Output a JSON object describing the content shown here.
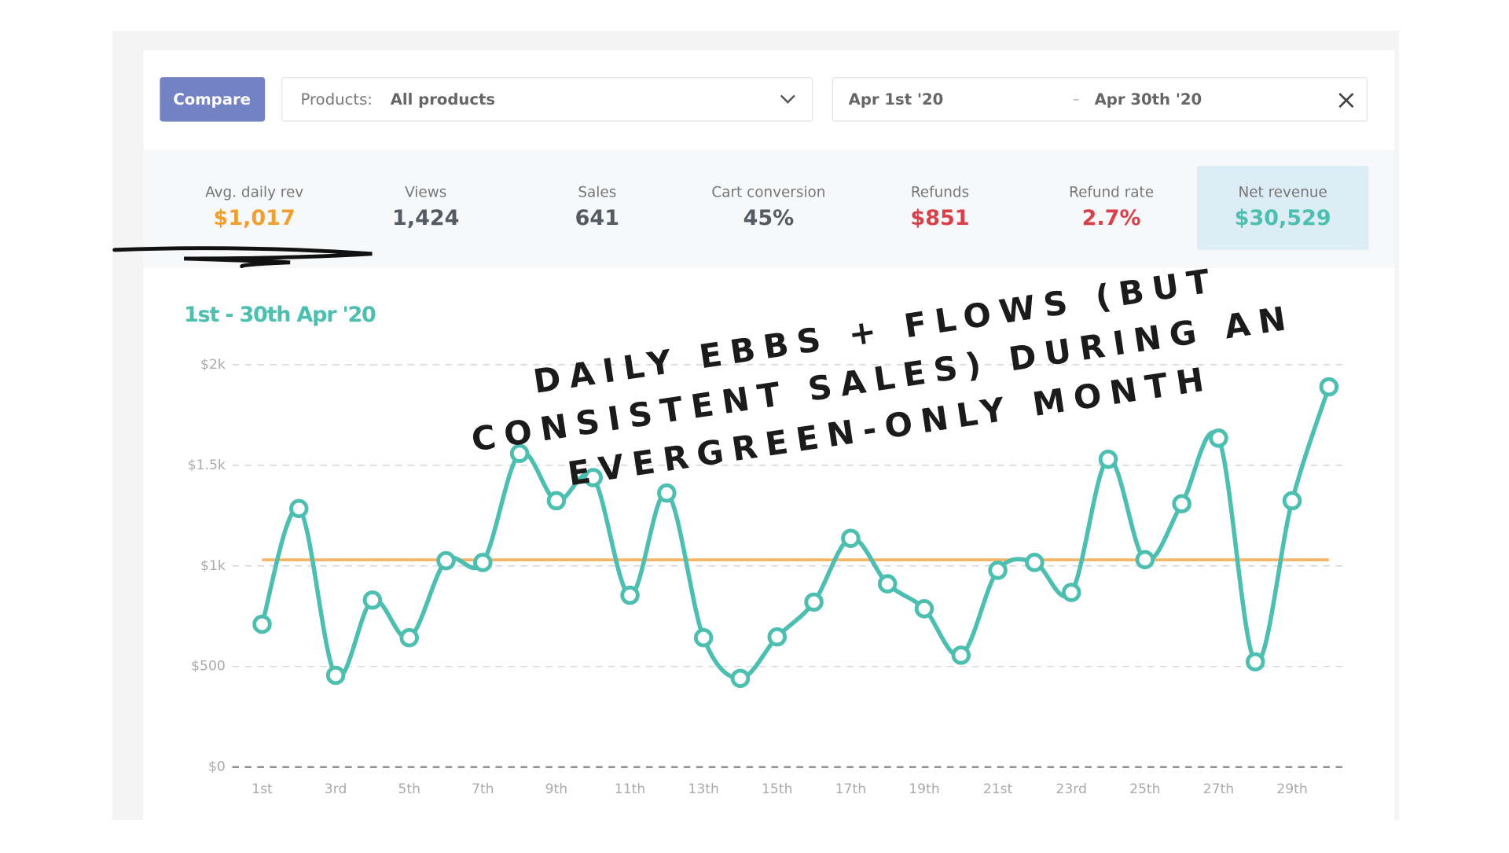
{
  "toolbar": {
    "compare": "Compare",
    "products_label": "Products:",
    "products_value": "All products",
    "date_start": "Apr 1st '20",
    "date_separator": "–",
    "date_end": "Apr 30th '20"
  },
  "stats": [
    {
      "label": "Avg. daily rev",
      "value": "$1,017",
      "color": "#f0a030"
    },
    {
      "label": "Views",
      "value": "1,424",
      "color": "#555b63"
    },
    {
      "label": "Sales",
      "value": "641",
      "color": "#555b63"
    },
    {
      "label": "Cart conversion",
      "value": "45%",
      "color": "#555b63"
    },
    {
      "label": "Refunds",
      "value": "$851",
      "color": "#d9414a"
    },
    {
      "label": "Refund rate",
      "value": "2.7%",
      "color": "#d9414a"
    },
    {
      "label": "Net revenue",
      "value": "$30,529",
      "color": "#4dbfb0",
      "highlight": true
    }
  ],
  "chart_data": {
    "type": "line",
    "title": "1st - 30th Apr '20",
    "annotation": [
      "DAILY EBBS + FLOWS (BUT",
      "CONSISTENT SALES) DURING AN",
      "EVERGREEN-ONLY MONTH"
    ],
    "categories": [
      "1st",
      null,
      "3rd",
      null,
      "5th",
      null,
      "7th",
      null,
      "9th",
      null,
      "11th",
      null,
      "13th",
      null,
      "15th",
      null,
      "17th",
      null,
      "19th",
      null,
      "21st",
      null,
      "23rd",
      null,
      "25th",
      null,
      "27th",
      null,
      "29th",
      null
    ],
    "series": [
      {
        "color": "#4dbfb0",
        "values": [
          710,
          1285,
          456,
          830,
          643,
          1026,
          1017,
          1559,
          1324,
          1439,
          854,
          1362,
          643,
          441,
          647,
          820,
          1137,
          911,
          787,
          556,
          978,
          1017,
          868,
          1530,
          1031,
          1309,
          1635,
          523,
          1324,
          1890
        ]
      }
    ],
    "reference_line": {
      "value": 1030,
      "color": "#f5b66a"
    },
    "ylim": [
      0,
      2000
    ],
    "yticks": [
      {
        "value": 0,
        "label": "$0"
      },
      {
        "value": 500,
        "label": "$500"
      },
      {
        "value": 1000,
        "label": "$1k"
      },
      {
        "value": 1500,
        "label": "$1.5k"
      },
      {
        "value": 2000,
        "label": "$2k"
      }
    ],
    "grid": true
  }
}
